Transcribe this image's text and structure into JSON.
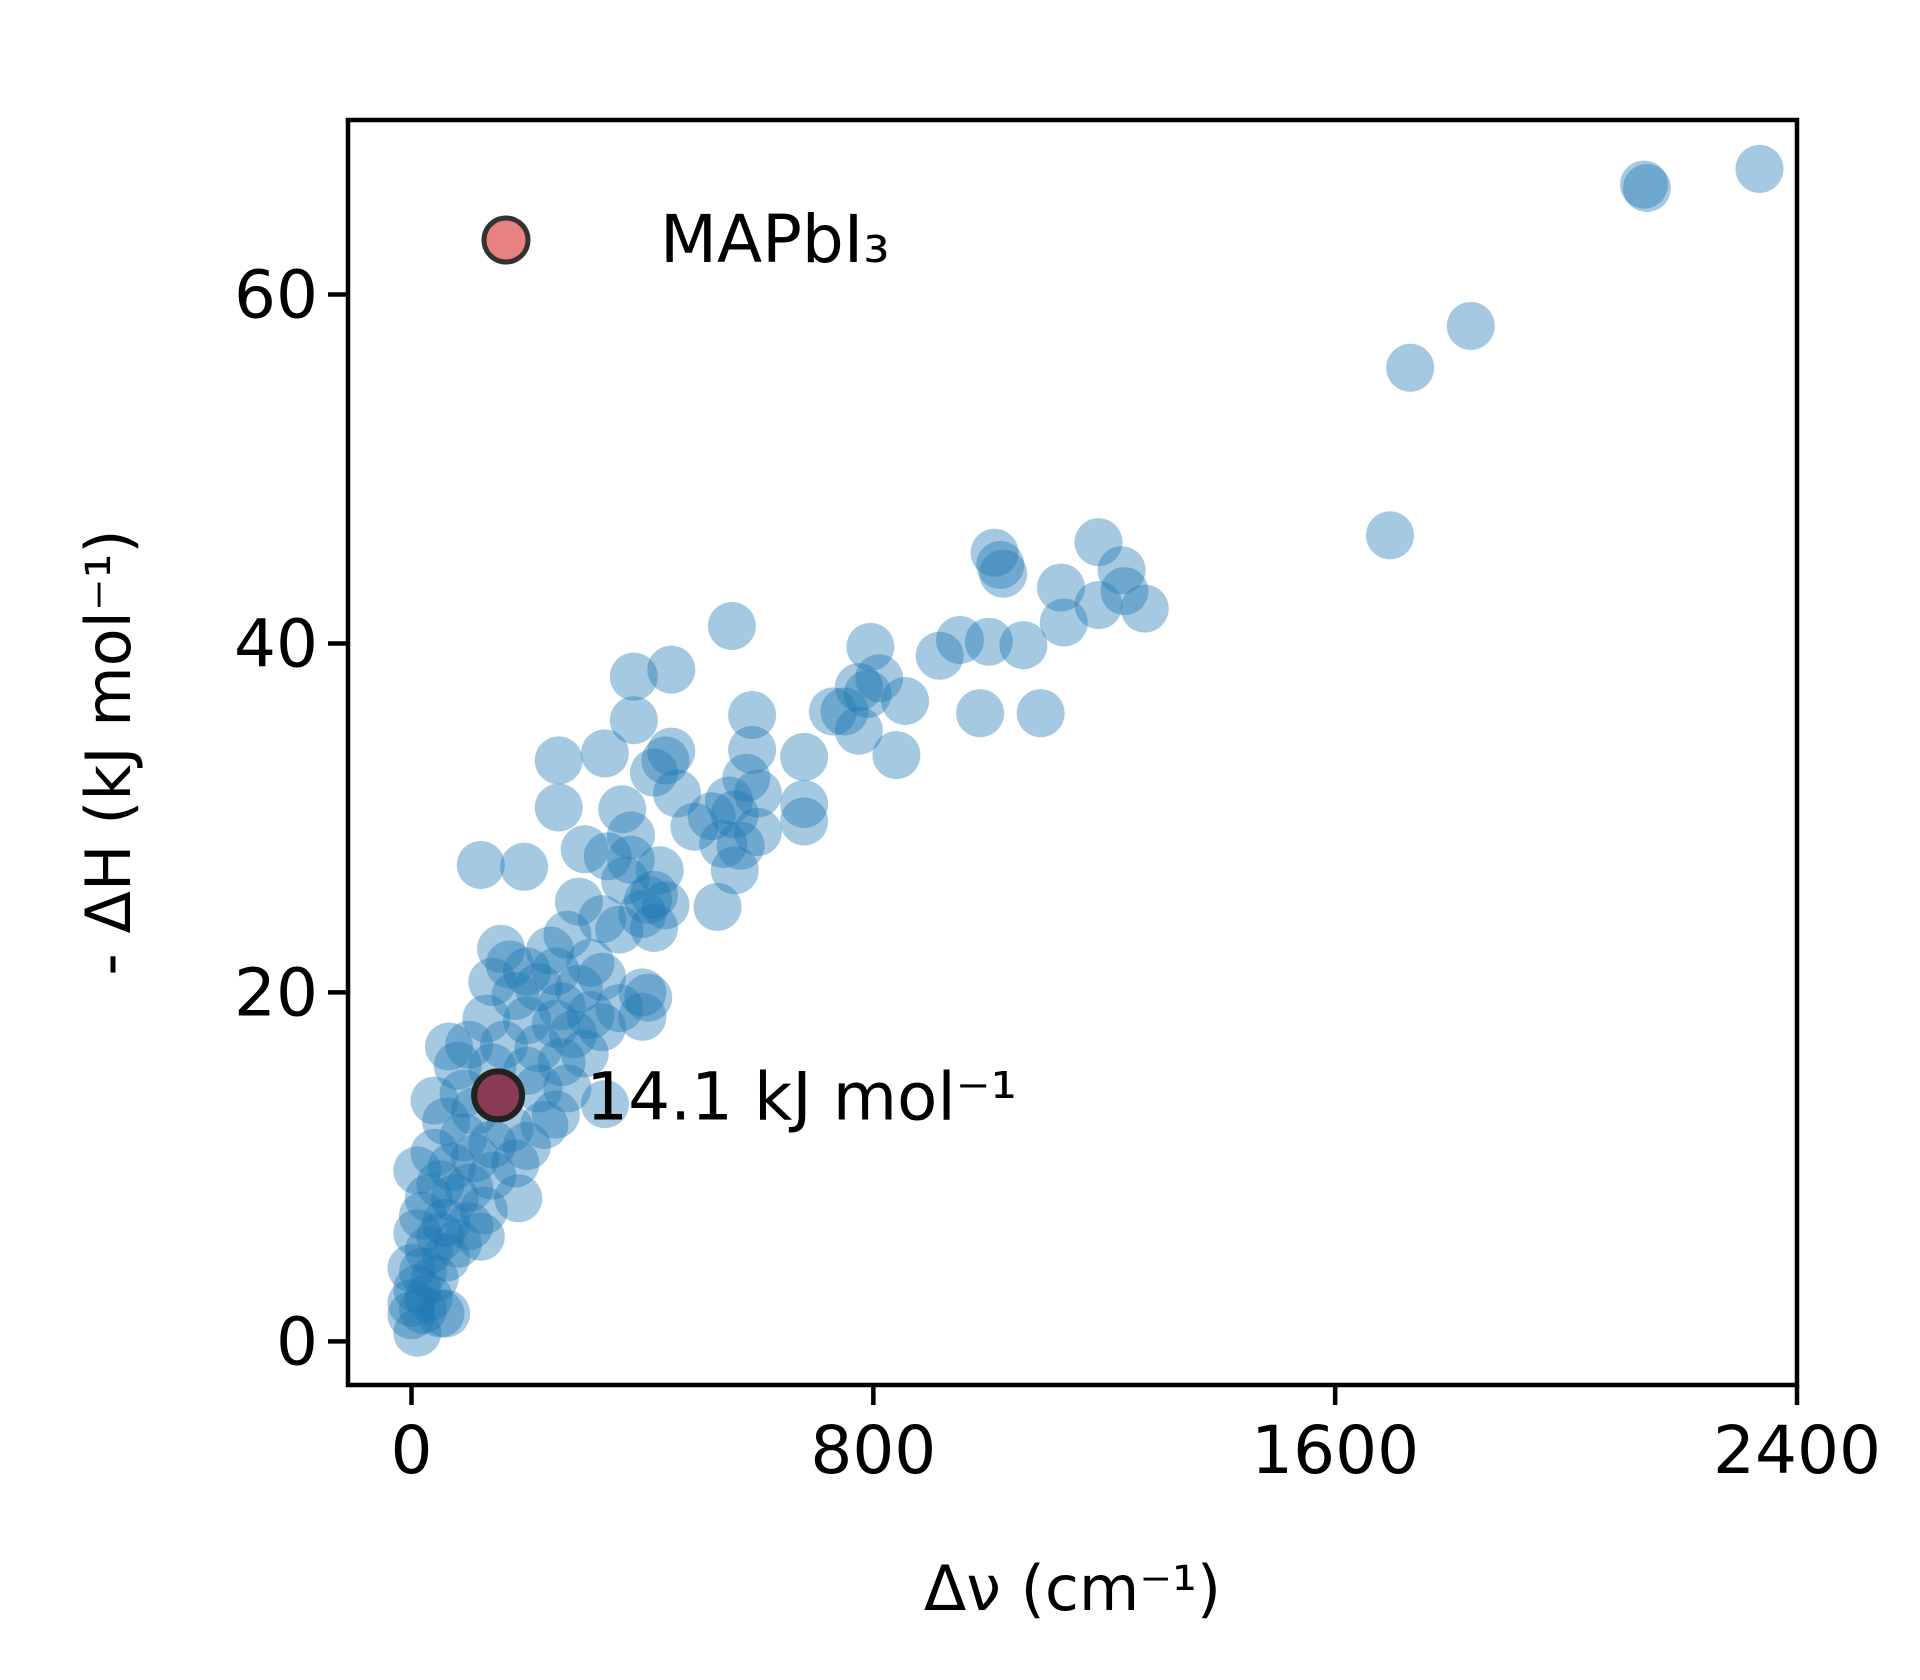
{
  "chart_data": {
    "type": "scatter",
    "xlabel": "Δν (cm⁻¹)",
    "ylabel": "- ΔH (kJ mol⁻¹)",
    "xlim": [
      -110,
      2400
    ],
    "ylim": [
      -2.5,
      70
    ],
    "xticks": [
      0,
      800,
      1600,
      2400
    ],
    "yticks": [
      0,
      20,
      40,
      60
    ],
    "grid": false,
    "legend": {
      "placement": "top-left",
      "entries": [
        {
          "label": "MAPbI₃",
          "color": "#e67373"
        }
      ]
    },
    "annotations": [
      {
        "text": "14.1 kJ mol⁻¹"
      }
    ],
    "colors": {
      "dataset": "#1f77b4",
      "highlight": "#8b3a55",
      "legend_marker": "#e67373",
      "edge": "#222222"
    },
    "highlight_point": {
      "x": 150,
      "y": 14.1
    },
    "series": [
      {
        "marker_alpha": 0.4,
        "points": [
          [
            2335,
            67.2
          ],
          [
            2135,
            66.3
          ],
          [
            2140,
            66.1
          ],
          [
            1835,
            58.2
          ],
          [
            1730,
            55.8
          ],
          [
            1695,
            46.2
          ],
          [
            1190,
            45.8
          ],
          [
            1010,
            45.2
          ],
          [
            1020,
            44.5
          ],
          [
            1025,
            44.0
          ],
          [
            1230,
            44.2
          ],
          [
            1125,
            43.2
          ],
          [
            1235,
            43.0
          ],
          [
            1190,
            42.2
          ],
          [
            1270,
            42.0
          ],
          [
            1130,
            41.2
          ],
          [
            555,
            41.0
          ],
          [
            950,
            40.2
          ],
          [
            1000,
            40.1
          ],
          [
            1060,
            39.9
          ],
          [
            795,
            39.8
          ],
          [
            915,
            39.3
          ],
          [
            385,
            38.1
          ],
          [
            450,
            38.5
          ],
          [
            810,
            38.0
          ],
          [
            775,
            37.5
          ],
          [
            855,
            36.7
          ],
          [
            790,
            37.1
          ],
          [
            985,
            36.0
          ],
          [
            1090,
            36.0
          ],
          [
            730,
            36.1
          ],
          [
            750,
            36.1
          ],
          [
            385,
            35.6
          ],
          [
            590,
            35.9
          ],
          [
            775,
            35.0
          ],
          [
            840,
            33.6
          ],
          [
            335,
            33.7
          ],
          [
            255,
            33.3
          ],
          [
            450,
            33.8
          ],
          [
            440,
            33.3
          ],
          [
            590,
            33.9
          ],
          [
            680,
            33.5
          ],
          [
            420,
            32.6
          ],
          [
            580,
            32.3
          ],
          [
            600,
            31.4
          ],
          [
            550,
            31.0
          ],
          [
            460,
            31.4
          ],
          [
            255,
            30.6
          ],
          [
            365,
            30.5
          ],
          [
            520,
            30.1
          ],
          [
            560,
            30.2
          ],
          [
            600,
            29.2
          ],
          [
            680,
            30.8
          ],
          [
            680,
            29.8
          ],
          [
            490,
            29.5
          ],
          [
            380,
            29.0
          ],
          [
            540,
            28.5
          ],
          [
            570,
            28.4
          ],
          [
            300,
            28.2
          ],
          [
            380,
            27.6
          ],
          [
            340,
            27.8
          ],
          [
            120,
            27.3
          ],
          [
            195,
            27.2
          ],
          [
            430,
            27.0
          ],
          [
            560,
            27.0
          ],
          [
            370,
            26.4
          ],
          [
            420,
            25.6
          ],
          [
            410,
            25.3
          ],
          [
            440,
            25.0
          ],
          [
            290,
            25.2
          ],
          [
            530,
            24.9
          ],
          [
            400,
            24.5
          ],
          [
            330,
            24.2
          ],
          [
            360,
            23.6
          ],
          [
            270,
            23.3
          ],
          [
            420,
            23.7
          ],
          [
            240,
            22.4
          ],
          [
            155,
            22.5
          ],
          [
            170,
            21.6
          ],
          [
            310,
            21.7
          ],
          [
            200,
            21.2
          ],
          [
            250,
            21.2
          ],
          [
            330,
            20.9
          ],
          [
            140,
            20.6
          ],
          [
            220,
            20.3
          ],
          [
            290,
            20.2
          ],
          [
            400,
            20.0
          ],
          [
            410,
            19.7
          ],
          [
            180,
            19.8
          ],
          [
            360,
            19.1
          ],
          [
            260,
            19.2
          ],
          [
            310,
            18.7
          ],
          [
            400,
            18.6
          ],
          [
            130,
            18.5
          ],
          [
            200,
            18.4
          ],
          [
            250,
            18.2
          ],
          [
            330,
            18.0
          ],
          [
            280,
            17.6
          ],
          [
            65,
            16.9
          ],
          [
            100,
            17.0
          ],
          [
            160,
            17.0
          ],
          [
            220,
            16.8
          ],
          [
            300,
            16.5
          ],
          [
            260,
            16.0
          ],
          [
            80,
            15.8
          ],
          [
            140,
            15.7
          ],
          [
            200,
            15.5
          ],
          [
            40,
            13.8
          ],
          [
            90,
            14.2
          ],
          [
            150,
            14.2
          ],
          [
            220,
            14.5
          ],
          [
            270,
            14.5
          ],
          [
            335,
            13.6
          ],
          [
            250,
            13.0
          ],
          [
            110,
            13.2
          ],
          [
            60,
            12.6
          ],
          [
            170,
            12.2
          ],
          [
            230,
            12.4
          ],
          [
            90,
            11.7
          ],
          [
            140,
            11.3
          ],
          [
            200,
            11.2
          ],
          [
            40,
            10.8
          ],
          [
            110,
            10.5
          ],
          [
            180,
            10.2
          ],
          [
            70,
            10.0
          ],
          [
            10,
            9.8
          ],
          [
            140,
            9.5
          ],
          [
            50,
            9.0
          ],
          [
            100,
            8.8
          ],
          [
            185,
            8.2
          ],
          [
            30,
            8.2
          ],
          [
            75,
            8.2
          ],
          [
            125,
            7.5
          ],
          [
            20,
            7.2
          ],
          [
            60,
            6.8
          ],
          [
            100,
            6.6
          ],
          [
            10,
            6.2
          ],
          [
            50,
            6.0
          ],
          [
            120,
            6.0
          ],
          [
            80,
            5.6
          ],
          [
            30,
            5.2
          ],
          [
            60,
            4.8
          ],
          [
            0,
            4.2
          ],
          [
            20,
            4.0
          ],
          [
            40,
            3.6
          ],
          [
            10,
            3.0
          ],
          [
            30,
            2.5
          ],
          [
            0,
            2.2
          ],
          [
            20,
            1.8
          ],
          [
            50,
            1.6
          ],
          [
            0,
            1.5
          ],
          [
            60,
            1.6
          ],
          [
            10,
            0.5
          ]
        ]
      }
    ]
  }
}
